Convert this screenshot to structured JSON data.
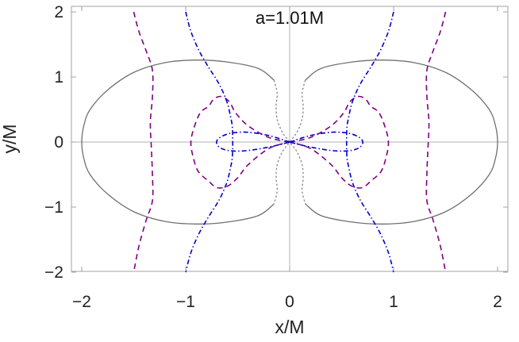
{
  "chart_data": {
    "type": "line",
    "title": "a=1.01M",
    "xlabel": "x/M",
    "ylabel": "y/M",
    "xlim": [
      -2.2,
      2.2
    ],
    "ylim": [
      -2.1,
      2.1
    ],
    "xticks": [
      -2,
      -1,
      0,
      1,
      2
    ],
    "yticks": [
      -2,
      -1,
      0,
      1,
      2
    ],
    "xtick_labels": [
      "−2",
      "−1",
      "0",
      "1",
      "2"
    ],
    "ytick_labels": [
      "−2",
      "−1",
      "0",
      "1",
      "2"
    ],
    "frame": true,
    "axes_through_origin": true,
    "colors": {
      "solid": "#707070",
      "dotted": "#888888",
      "dashed": "#800080",
      "dashdot": "#0000d0",
      "axis": "#b0b0b0",
      "frame": "#a0a0a0"
    },
    "series": [
      {
        "style": "solid",
        "x": [
          0.15,
          0.3,
          0.6,
          0.9,
          1.2,
          1.5,
          1.75,
          1.92,
          1.98,
          2.0,
          1.98,
          1.92,
          1.75,
          1.5,
          1.2,
          0.9,
          0.6,
          0.3,
          0.15
        ],
        "y": [
          0.95,
          1.13,
          1.23,
          1.26,
          1.22,
          1.07,
          0.8,
          0.5,
          0.25,
          0.0,
          -0.25,
          -0.5,
          -0.8,
          -1.07,
          -1.22,
          -1.26,
          -1.23,
          -1.13,
          -0.95
        ]
      },
      {
        "style": "solid",
        "x": [
          -0.15,
          -0.3,
          -0.6,
          -0.9,
          -1.2,
          -1.5,
          -1.75,
          -1.92,
          -1.98,
          -2.0,
          -1.98,
          -1.92,
          -1.75,
          -1.5,
          -1.2,
          -0.9,
          -0.6,
          -0.3,
          -0.15
        ],
        "y": [
          0.95,
          1.13,
          1.23,
          1.26,
          1.22,
          1.07,
          0.8,
          0.5,
          0.25,
          0.0,
          -0.25,
          -0.5,
          -0.8,
          -1.07,
          -1.22,
          -1.26,
          -1.23,
          -1.13,
          -0.95
        ]
      },
      {
        "style": "dotted",
        "x": [
          0.15,
          0.12,
          0.13,
          0.12,
          0.07,
          0.0,
          -0.07,
          -0.12,
          -0.13,
          -0.12,
          -0.15
        ],
        "y": [
          0.95,
          0.75,
          0.55,
          0.35,
          0.15,
          0.0,
          -0.15,
          -0.35,
          -0.55,
          -0.75,
          -0.95
        ]
      },
      {
        "style": "dotted",
        "x": [
          -0.15,
          -0.12,
          -0.13,
          -0.12,
          -0.07,
          0.0,
          0.07,
          0.12,
          0.13,
          0.12,
          0.15
        ],
        "y": [
          0.95,
          0.75,
          0.55,
          0.35,
          0.15,
          0.0,
          -0.15,
          -0.35,
          -0.55,
          -0.75,
          -0.95
        ]
      },
      {
        "style": "dashed",
        "x": [
          1.5,
          1.45,
          1.38,
          1.32,
          1.32,
          1.34,
          1.33,
          1.32,
          1.32,
          1.38,
          1.45,
          1.5
        ],
        "y": [
          2.0,
          1.7,
          1.4,
          1.1,
          0.7,
          0.3,
          -0.1,
          -0.5,
          -0.9,
          -1.2,
          -1.6,
          -2.0
        ]
      },
      {
        "style": "dashed",
        "x": [
          -1.5,
          -1.45,
          -1.38,
          -1.32,
          -1.32,
          -1.34,
          -1.33,
          -1.32,
          -1.32,
          -1.38,
          -1.45,
          -1.5
        ],
        "y": [
          2.0,
          1.7,
          1.4,
          1.1,
          0.7,
          0.3,
          -0.1,
          -0.5,
          -0.9,
          -1.2,
          -1.6,
          -2.0
        ]
      },
      {
        "style": "dashed",
        "x": [
          0.0,
          0.2,
          0.4,
          0.52,
          0.58,
          0.66,
          0.73,
          0.78,
          0.86,
          0.92,
          0.95,
          0.93,
          0.88,
          0.78,
          0.7,
          0.6,
          0.5,
          0.4,
          0.2,
          0.0
        ],
        "y": [
          0.0,
          0.07,
          0.25,
          0.45,
          0.62,
          0.7,
          0.66,
          0.55,
          0.45,
          0.22,
          0.0,
          -0.22,
          -0.45,
          -0.6,
          -0.7,
          -0.68,
          -0.55,
          -0.35,
          -0.1,
          0.0
        ]
      },
      {
        "style": "dashed",
        "x": [
          0.0,
          -0.2,
          -0.4,
          -0.52,
          -0.58,
          -0.66,
          -0.73,
          -0.78,
          -0.86,
          -0.92,
          -0.95,
          -0.93,
          -0.88,
          -0.78,
          -0.7,
          -0.6,
          -0.5,
          -0.4,
          -0.2,
          0.0
        ],
        "y": [
          0.0,
          0.07,
          0.25,
          0.45,
          0.62,
          0.7,
          0.66,
          0.55,
          0.45,
          0.22,
          0.0,
          -0.22,
          -0.45,
          -0.6,
          -0.7,
          -0.68,
          -0.55,
          -0.35,
          -0.1,
          0.0
        ]
      },
      {
        "style": "dashdot",
        "x": [
          1.0,
          0.95,
          0.87,
          0.78,
          0.7,
          0.65,
          0.6,
          0.57,
          0.55,
          0.55,
          0.57,
          0.6,
          0.65,
          0.7,
          0.78,
          0.87,
          0.95,
          1.0
        ],
        "y": [
          2.0,
          1.7,
          1.4,
          1.15,
          0.95,
          0.8,
          0.6,
          0.4,
          0.2,
          -0.2,
          -0.4,
          -0.6,
          -0.8,
          -0.95,
          -1.15,
          -1.4,
          -1.7,
          -2.0
        ]
      },
      {
        "style": "dashdot",
        "x": [
          -1.0,
          -0.95,
          -0.87,
          -0.78,
          -0.7,
          -0.65,
          -0.6,
          -0.57,
          -0.55,
          -0.55,
          -0.57,
          -0.6,
          -0.65,
          -0.7,
          -0.78,
          -0.87,
          -0.95,
          -1.0
        ],
        "y": [
          2.0,
          1.7,
          1.4,
          1.15,
          0.95,
          0.8,
          0.6,
          0.4,
          0.2,
          -0.2,
          -0.4,
          -0.6,
          -0.8,
          -0.95,
          -1.15,
          -1.4,
          -1.7,
          -2.0
        ]
      },
      {
        "style": "dashdot",
        "x": [
          0.0,
          0.2,
          0.4,
          0.55,
          0.65,
          0.7,
          0.69,
          0.62,
          0.5,
          0.35,
          0.15,
          0.0
        ],
        "y": [
          0.0,
          0.1,
          0.15,
          0.14,
          0.09,
          0.02,
          -0.06,
          -0.12,
          -0.14,
          -0.12,
          -0.06,
          0.0
        ]
      },
      {
        "style": "dashdot",
        "x": [
          0.0,
          -0.2,
          -0.4,
          -0.55,
          -0.65,
          -0.7,
          -0.69,
          -0.62,
          -0.5,
          -0.35,
          -0.15,
          0.0
        ],
        "y": [
          0.0,
          0.1,
          0.15,
          0.14,
          0.09,
          0.02,
          -0.06,
          -0.12,
          -0.14,
          -0.12,
          -0.06,
          0.0
        ]
      }
    ]
  }
}
